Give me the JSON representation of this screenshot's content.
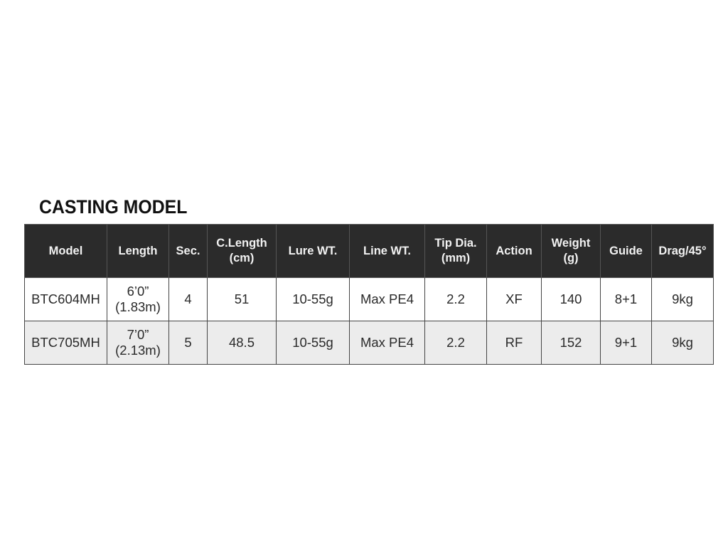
{
  "title": "CASTING MODEL",
  "columns": [
    [
      "Model"
    ],
    [
      "Length"
    ],
    [
      "Sec."
    ],
    [
      "C.Length",
      "(cm)"
    ],
    [
      "Lure WT."
    ],
    [
      "Line WT."
    ],
    [
      "Tip Dia.",
      "(mm)"
    ],
    [
      "Action"
    ],
    [
      "Weight",
      "(g)"
    ],
    [
      "Guide"
    ],
    [
      "Drag/45°"
    ]
  ],
  "rows": [
    [
      [
        "BTC604MH"
      ],
      [
        "6’0”",
        "(1.83m)"
      ],
      [
        "4"
      ],
      [
        "51"
      ],
      [
        "10-55g"
      ],
      [
        "Max PE4"
      ],
      [
        "2.2"
      ],
      [
        "XF"
      ],
      [
        "140"
      ],
      [
        "8+1"
      ],
      [
        "9kg"
      ]
    ],
    [
      [
        "BTC705MH"
      ],
      [
        "7’0”",
        "(2.13m)"
      ],
      [
        "5"
      ],
      [
        "48.5"
      ],
      [
        "10-55g"
      ],
      [
        "Max PE4"
      ],
      [
        "2.2"
      ],
      [
        "RF"
      ],
      [
        "152"
      ],
      [
        "9+1"
      ],
      [
        "9kg"
      ]
    ]
  ],
  "colors": {
    "header_bg": "#2b2b2b",
    "header_text": "#f2f2f2",
    "alt_row_bg": "#ececec"
  }
}
